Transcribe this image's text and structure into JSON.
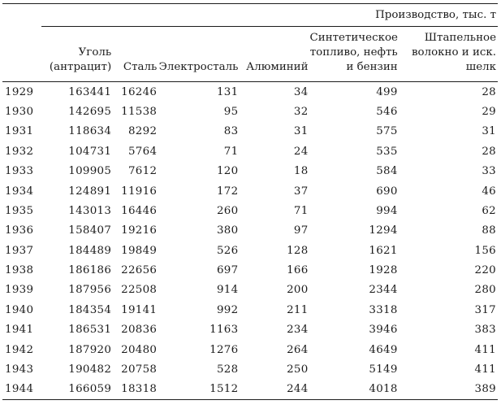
{
  "page": {
    "background_color": "#ffffff",
    "text_color": "#1c1c1c",
    "rule_color": "#1c1c1c"
  },
  "table": {
    "spanner_label": "Производство, тыс. т",
    "columns": [
      {
        "label": ""
      },
      {
        "label": "Уголь\n(антрацит)"
      },
      {
        "label": "Сталь"
      },
      {
        "label": "Электросталь"
      },
      {
        "label": "Алюминий"
      },
      {
        "label": "Синтетическое\nтопливо, нефть\nи бензин"
      },
      {
        "label": "Штапельное\nволокно и иск.\nшелк"
      }
    ],
    "rows": [
      [
        "1929",
        "163441",
        "16246",
        "131",
        "34",
        "499",
        "28"
      ],
      [
        "1930",
        "142695",
        "11538",
        "95",
        "32",
        "546",
        "29"
      ],
      [
        "1931",
        "118634",
        "8292",
        "83",
        "31",
        "575",
        "31"
      ],
      [
        "1932",
        "104731",
        "5764",
        "71",
        "24",
        "535",
        "28"
      ],
      [
        "1933",
        "109905",
        "7612",
        "120",
        "18",
        "584",
        "33"
      ],
      [
        "1934",
        "124891",
        "11916",
        "172",
        "37",
        "690",
        "46"
      ],
      [
        "1935",
        "143013",
        "16446",
        "260",
        "71",
        "994",
        "62"
      ],
      [
        "1936",
        "158407",
        "19216",
        "380",
        "97",
        "1294",
        "88"
      ],
      [
        "1937",
        "184489",
        "19849",
        "526",
        "128",
        "1621",
        "156"
      ],
      [
        "1938",
        "186186",
        "22656",
        "697",
        "166",
        "1928",
        "220"
      ],
      [
        "1939",
        "187956",
        "22508",
        "914",
        "200",
        "2344",
        "280"
      ],
      [
        "1940",
        "184354",
        "19141",
        "992",
        "211",
        "3318",
        "317"
      ],
      [
        "1941",
        "186531",
        "20836",
        "1163",
        "234",
        "3946",
        "383"
      ],
      [
        "1942",
        "187920",
        "20480",
        "1276",
        "264",
        "4649",
        "411"
      ],
      [
        "1943",
        "190482",
        "20758",
        "528",
        "250",
        "5149",
        "411"
      ],
      [
        "1944",
        "166059",
        "18318",
        "1512",
        "244",
        "4018",
        "389"
      ]
    ]
  },
  "chart_data": {
    "type": "table",
    "title": "Производство, тыс. т",
    "categories": [
      "1929",
      "1930",
      "1931",
      "1932",
      "1933",
      "1934",
      "1935",
      "1936",
      "1937",
      "1938",
      "1939",
      "1940",
      "1941",
      "1942",
      "1943",
      "1944"
    ],
    "series": [
      {
        "name": "Уголь (антрацит)",
        "values": [
          163441,
          142695,
          118634,
          104731,
          109905,
          124891,
          143013,
          158407,
          184489,
          186186,
          187956,
          184354,
          186531,
          187920,
          190482,
          166059
        ]
      },
      {
        "name": "Сталь",
        "values": [
          16246,
          11538,
          8292,
          5764,
          7612,
          11916,
          16446,
          19216,
          19849,
          22656,
          22508,
          19141,
          20836,
          20480,
          20758,
          18318
        ]
      },
      {
        "name": "Электросталь",
        "values": [
          131,
          95,
          83,
          71,
          120,
          172,
          260,
          380,
          526,
          697,
          914,
          992,
          1163,
          1276,
          528,
          1512
        ]
      },
      {
        "name": "Алюминий",
        "values": [
          34,
          32,
          31,
          24,
          18,
          37,
          71,
          97,
          128,
          166,
          200,
          211,
          234,
          264,
          250,
          244
        ]
      },
      {
        "name": "Синтетическое топливо, нефть и бензин",
        "values": [
          499,
          546,
          575,
          535,
          584,
          690,
          994,
          1294,
          1621,
          1928,
          2344,
          3318,
          3946,
          4649,
          5149,
          4018
        ]
      },
      {
        "name": "Штапельное волокно и иск. шелк",
        "values": [
          28,
          29,
          31,
          28,
          33,
          46,
          62,
          88,
          156,
          220,
          280,
          317,
          383,
          411,
          411,
          389
        ]
      }
    ]
  }
}
